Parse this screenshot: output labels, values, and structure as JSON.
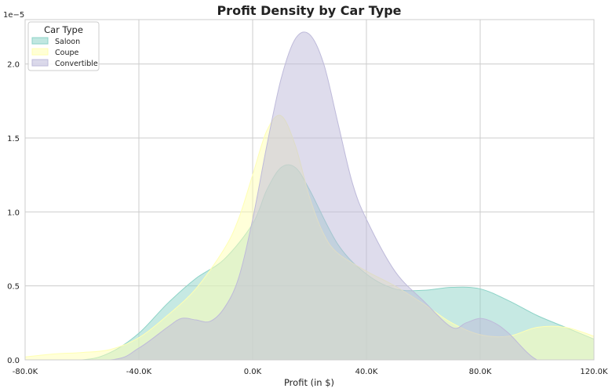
{
  "chart_data": {
    "type": "area",
    "title": "Profit Density by Car Type",
    "xlabel": "Profit (in $)",
    "ylabel": "",
    "y_offset_label": "1e−5",
    "xlim": [
      -80000,
      120000
    ],
    "ylim": [
      0,
      2.3
    ],
    "y_scale_multiplier": 1e-05,
    "grid": true,
    "legend_placement": "top-left",
    "legend_title": "Car Type",
    "x_ticks": [
      {
        "value": -80000,
        "label": "-80.0K"
      },
      {
        "value": -40000,
        "label": "-40.0K"
      },
      {
        "value": 0,
        "label": "0.0K"
      },
      {
        "value": 40000,
        "label": "40.0K"
      },
      {
        "value": 80000,
        "label": "80.0K"
      },
      {
        "value": 120000,
        "label": "120.0K"
      }
    ],
    "y_ticks": [
      {
        "value": 0.0,
        "label": "0.0"
      },
      {
        "value": 0.5,
        "label": "0.5"
      },
      {
        "value": 1.0,
        "label": "1.0"
      },
      {
        "value": 1.5,
        "label": "1.5"
      },
      {
        "value": 2.0,
        "label": "2.0"
      }
    ],
    "series": [
      {
        "name": "Saloon",
        "color": "#8dd3c7",
        "x": [
          -80000,
          -60000,
          -50000,
          -40000,
          -30000,
          -20000,
          -10000,
          0,
          5000,
          10000,
          15000,
          20000,
          30000,
          40000,
          50000,
          60000,
          70000,
          80000,
          90000,
          100000,
          110000,
          120000
        ],
        "y": [
          0.0,
          0.0,
          0.05,
          0.18,
          0.38,
          0.55,
          0.68,
          0.92,
          1.15,
          1.3,
          1.3,
          1.15,
          0.78,
          0.58,
          0.48,
          0.47,
          0.49,
          0.48,
          0.4,
          0.3,
          0.22,
          0.14
        ]
      },
      {
        "name": "Coupe",
        "color": "#ffffb3",
        "x": [
          -80000,
          -70000,
          -60000,
          -50000,
          -40000,
          -30000,
          -20000,
          -10000,
          -5000,
          0,
          5000,
          10000,
          15000,
          20000,
          25000,
          30000,
          40000,
          50000,
          60000,
          70000,
          80000,
          90000,
          100000,
          110000,
          120000
        ],
        "y": [
          0.02,
          0.04,
          0.05,
          0.07,
          0.15,
          0.3,
          0.48,
          0.75,
          0.95,
          1.25,
          1.55,
          1.65,
          1.45,
          1.1,
          0.85,
          0.72,
          0.6,
          0.5,
          0.38,
          0.25,
          0.17,
          0.16,
          0.22,
          0.22,
          0.16
        ]
      },
      {
        "name": "Convertible",
        "color": "#bebada",
        "x": [
          -80000,
          -50000,
          -40000,
          -30000,
          -25000,
          -20000,
          -15000,
          -10000,
          -5000,
          0,
          5000,
          10000,
          15000,
          20000,
          25000,
          30000,
          35000,
          40000,
          50000,
          60000,
          70000,
          75000,
          80000,
          85000,
          90000,
          100000,
          110000,
          120000
        ],
        "y": [
          0.0,
          0.0,
          0.08,
          0.22,
          0.28,
          0.27,
          0.26,
          0.35,
          0.55,
          0.95,
          1.45,
          1.9,
          2.17,
          2.2,
          2.0,
          1.6,
          1.2,
          0.95,
          0.6,
          0.4,
          0.22,
          0.25,
          0.28,
          0.25,
          0.18,
          0.0,
          0.0,
          0.0
        ]
      }
    ]
  }
}
